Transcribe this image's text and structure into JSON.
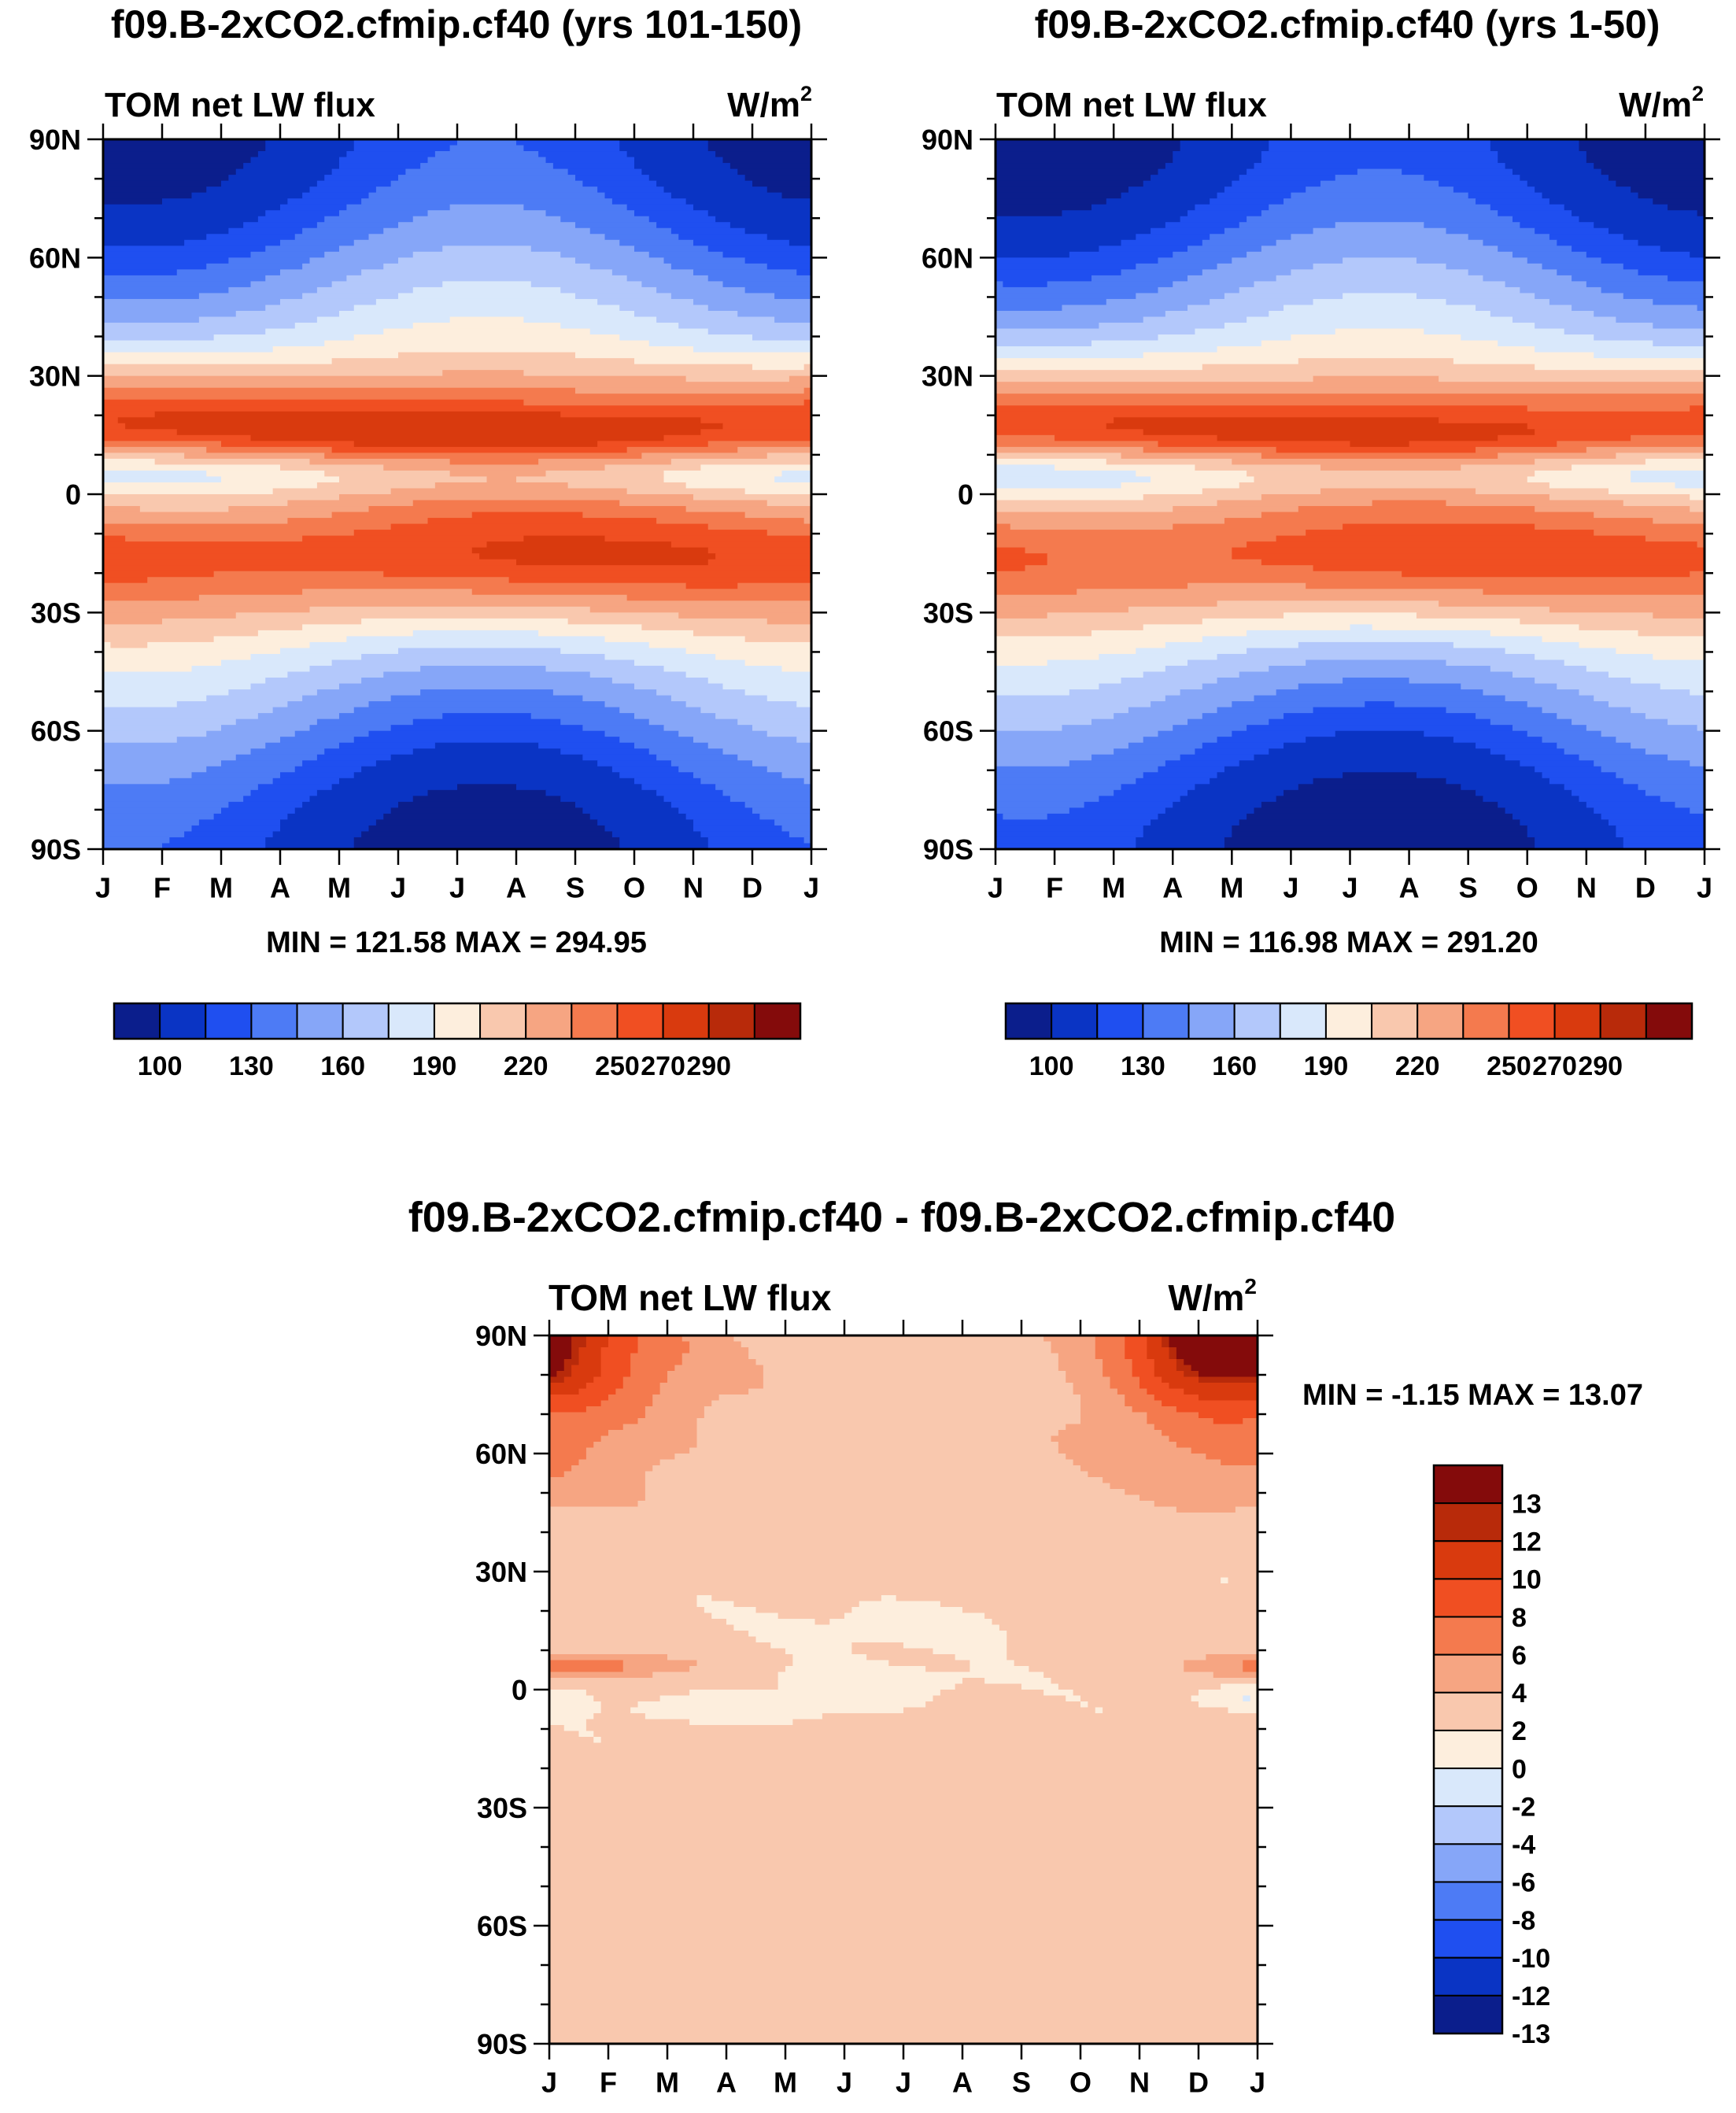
{
  "palette": [
    "#0b1e8c",
    "#0a34c4",
    "#1f4ff0",
    "#4d7bf5",
    "#86a6f8",
    "#b3c8fb",
    "#d9e8fb",
    "#fdeedd",
    "#f9c8ae",
    "#f6a582",
    "#f47a4e",
    "#f04f22",
    "#d93a0e",
    "#b82a0a",
    "#840b0b"
  ],
  "months": [
    "J",
    "F",
    "M",
    "A",
    "M",
    "J",
    "J",
    "A",
    "S",
    "O",
    "N",
    "D",
    "J"
  ],
  "lat_labels": [
    "90N",
    "60N",
    "30N",
    "0",
    "30S",
    "60S",
    "90S"
  ],
  "chart_data": [
    {
      "type": "heatmap",
      "id": "p1",
      "title": "f09.B-2xCO2.cfmip.cf40 (yrs 101-150)",
      "left_label": "TOM net LW flux",
      "units": "W/m",
      "units_sup": "2",
      "stats": "MIN = 121.58 MAX = 294.95",
      "colorbar_labels": [
        "100",
        "130",
        "160",
        "190",
        "220",
        "250",
        "270",
        "290"
      ],
      "variant": 0
    },
    {
      "type": "heatmap",
      "id": "p2",
      "title": "f09.B-2xCO2.cfmip.cf40 (yrs 1-50)",
      "left_label": "TOM net LW flux",
      "units": "W/m",
      "units_sup": "2",
      "stats": "MIN = 116.98 MAX = 291.20",
      "colorbar_labels": [
        "100",
        "130",
        "160",
        "190",
        "220",
        "250",
        "270",
        "290"
      ],
      "variant": 1
    },
    {
      "type": "heatmap",
      "id": "p3",
      "title": "f09.B-2xCO2.cfmip.cf40 - f09.B-2xCO2.cfmip.cf40",
      "left_label": "TOM net LW flux",
      "units": "W/m",
      "units_sup": "2",
      "stats": "MIN =  -1.15 MAX =  13.07",
      "colorbar_labels": [
        "13",
        "12",
        "10",
        "8",
        "6",
        "4",
        "2",
        "0",
        "-2",
        "-4",
        "-6",
        "-8",
        "-10",
        "-12",
        "-13"
      ]
    }
  ]
}
